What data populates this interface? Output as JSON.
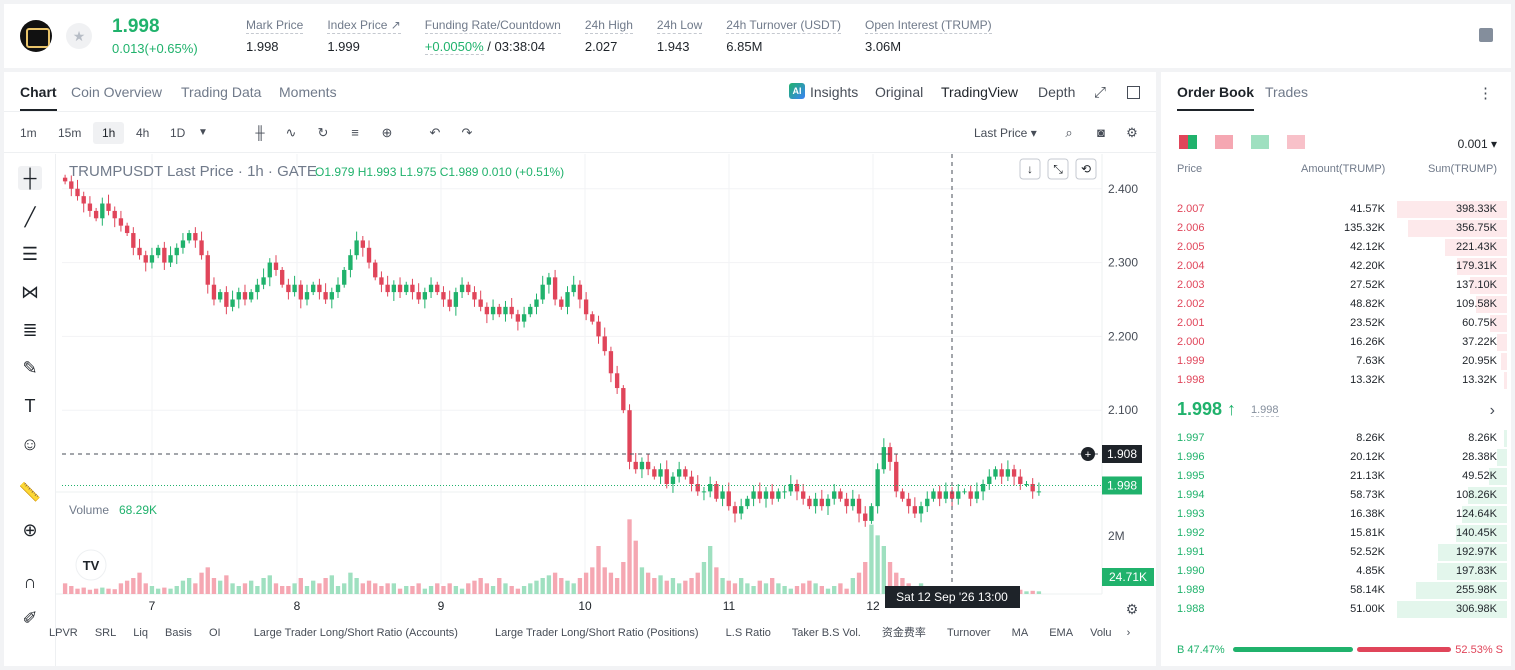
{
  "header": {
    "price": "1.998",
    "change": "0.013(+0.65%)",
    "stats": [
      {
        "label": "Mark Price",
        "value": "1.998"
      },
      {
        "label": "Index Price ↗",
        "value": "1.999"
      },
      {
        "label": "Funding Rate/Countdown",
        "value_green": "+0.0050%",
        "value": " / 03:38:04"
      },
      {
        "label": "24h High",
        "value": "2.027"
      },
      {
        "label": "24h Low",
        "value": "1.943"
      },
      {
        "label": "24h Turnover (USDT)",
        "value": "6.85M"
      },
      {
        "label": "Open Interest (TRUMP)",
        "value": "3.06M"
      }
    ]
  },
  "chart_tabs": [
    "Chart",
    "Coin Overview",
    "Trading Data",
    "Moments"
  ],
  "view_tabs": {
    "insights": "Insights",
    "original": "Original",
    "tradingview": "TradingView",
    "depth": "Depth",
    "ai_badge": "AI"
  },
  "timeframes": [
    "1m",
    "15m",
    "1h",
    "4h",
    "1D"
  ],
  "last_price_selector": "Last Price",
  "legend": {
    "title": "TRUMPUSDT Last Price · 1h · GATE",
    "ohlc": "O1.979  H1.993  L1.975  C1.989  0.010 (+0.51%)",
    "volume_label": "Volume",
    "volume_value": "68.29K"
  },
  "cursor_price": "1.908",
  "current_price_tag": "1.998",
  "volume_tag": "24.71K",
  "time_tooltip": "Sat 12 Sep '26   13:00",
  "indicators": [
    "LPVR",
    "SRL",
    "Liq",
    "Basis",
    "OI",
    "Large Trader Long/Short Ratio (Accounts)",
    "Large Trader Long/Short Ratio (Positions)",
    "L.S Ratio",
    "Taker B.S Vol.",
    "资金费率",
    "Turnover",
    "MA",
    "EMA",
    "Volu"
  ],
  "chart_data": {
    "type": "candlestick",
    "yticks": [
      2.4,
      2.3,
      2.2,
      2.1
    ],
    "ylim": [
      2.0,
      2.42
    ],
    "xticks": [
      "7",
      "8",
      "9",
      "10",
      "11",
      "12"
    ],
    "volume_tick": "2M",
    "closes": [
      2.41,
      2.4,
      2.39,
      2.38,
      2.37,
      2.36,
      2.38,
      2.37,
      2.36,
      2.35,
      2.34,
      2.32,
      2.31,
      2.3,
      2.31,
      2.32,
      2.3,
      2.31,
      2.32,
      2.33,
      2.34,
      2.33,
      2.31,
      2.27,
      2.25,
      2.26,
      2.24,
      2.25,
      2.26,
      2.25,
      2.26,
      2.27,
      2.28,
      2.3,
      2.29,
      2.27,
      2.26,
      2.27,
      2.25,
      2.26,
      2.27,
      2.26,
      2.25,
      2.26,
      2.27,
      2.29,
      2.31,
      2.33,
      2.32,
      2.3,
      2.28,
      2.27,
      2.26,
      2.27,
      2.26,
      2.27,
      2.26,
      2.25,
      2.26,
      2.27,
      2.26,
      2.25,
      2.24,
      2.26,
      2.27,
      2.26,
      2.25,
      2.24,
      2.23,
      2.24,
      2.23,
      2.24,
      2.23,
      2.22,
      2.23,
      2.24,
      2.25,
      2.27,
      2.28,
      2.25,
      2.24,
      2.26,
      2.27,
      2.25,
      2.23,
      2.22,
      2.2,
      2.18,
      2.15,
      2.13,
      2.1,
      2.03,
      2.02,
      2.03,
      2.02,
      2.01,
      2.02,
      2.0,
      2.01,
      2.02,
      2.01,
      2.0,
      1.99,
      1.99,
      2.0,
      1.98,
      1.99,
      1.97,
      1.96,
      1.97,
      1.98,
      1.99,
      1.98,
      1.99,
      1.98,
      1.99,
      1.99,
      2.0,
      1.99,
      1.98,
      1.97,
      1.98,
      1.97,
      1.98,
      1.99,
      1.98,
      1.97,
      1.98,
      1.96,
      1.95,
      1.97,
      2.02,
      2.05,
      2.03,
      1.99,
      1.98,
      1.97,
      1.96,
      1.97,
      1.98,
      1.99,
      1.98,
      1.99,
      1.98,
      1.99,
      1.99,
      1.98,
      1.99,
      2.0,
      2.01,
      2.02,
      2.01,
      2.02,
      2.01,
      2.0,
      2.0,
      1.99,
      1.99
    ],
    "volumes": [
      0.2,
      0.15,
      0.1,
      0.12,
      0.08,
      0.1,
      0.12,
      0.1,
      0.09,
      0.2,
      0.25,
      0.3,
      0.4,
      0.2,
      0.15,
      0.1,
      0.12,
      0.1,
      0.15,
      0.25,
      0.3,
      0.2,
      0.4,
      0.5,
      0.3,
      0.25,
      0.35,
      0.2,
      0.15,
      0.2,
      0.25,
      0.15,
      0.3,
      0.35,
      0.2,
      0.15,
      0.15,
      0.2,
      0.3,
      0.15,
      0.25,
      0.2,
      0.3,
      0.35,
      0.15,
      0.2,
      0.4,
      0.3,
      0.2,
      0.25,
      0.2,
      0.15,
      0.2,
      0.2,
      0.1,
      0.15,
      0.15,
      0.2,
      0.1,
      0.15,
      0.2,
      0.15,
      0.2,
      0.15,
      0.1,
      0.2,
      0.25,
      0.3,
      0.2,
      0.15,
      0.3,
      0.2,
      0.15,
      0.1,
      0.15,
      0.2,
      0.25,
      0.3,
      0.35,
      0.4,
      0.3,
      0.25,
      0.2,
      0.3,
      0.4,
      0.5,
      0.9,
      0.5,
      0.4,
      0.3,
      0.6,
      1.4,
      1.0,
      0.5,
      0.4,
      0.3,
      0.35,
      0.25,
      0.3,
      0.2,
      0.25,
      0.3,
      0.4,
      0.6,
      0.9,
      0.5,
      0.3,
      0.25,
      0.2,
      0.3,
      0.2,
      0.15,
      0.25,
      0.2,
      0.3,
      0.2,
      0.15,
      0.1,
      0.15,
      0.2,
      0.25,
      0.2,
      0.15,
      0.1,
      0.15,
      0.2,
      0.1,
      0.3,
      0.4,
      0.6,
      1.3,
      1.1,
      0.9,
      0.6,
      0.4,
      0.3,
      0.2,
      0.15,
      0.2,
      0.1,
      0.1,
      0.15,
      0.1,
      0.1,
      0.12,
      0.08,
      0.1,
      0.1,
      0.12,
      0.1,
      0.08,
      0.1,
      0.1,
      0.05,
      0.08,
      0.05,
      0.06,
      0.05
    ]
  },
  "orderbook": {
    "tabs": [
      "Order Book",
      "Trades"
    ],
    "precision": "0.001",
    "headers": {
      "price": "Price",
      "amount": "Amount(TRUMP)",
      "sum": "Sum(TRUMP)"
    },
    "asks": [
      {
        "p": "2.007",
        "a": "41.57K",
        "s": "398.33K",
        "depth": 1.0
      },
      {
        "p": "2.006",
        "a": "135.32K",
        "s": "356.75K",
        "depth": 0.9
      },
      {
        "p": "2.005",
        "a": "42.12K",
        "s": "221.43K",
        "depth": 0.56
      },
      {
        "p": "2.004",
        "a": "42.20K",
        "s": "179.31K",
        "depth": 0.45
      },
      {
        "p": "2.003",
        "a": "27.52K",
        "s": "137.10K",
        "depth": 0.34
      },
      {
        "p": "2.002",
        "a": "48.82K",
        "s": "109.58K",
        "depth": 0.28
      },
      {
        "p": "2.001",
        "a": "23.52K",
        "s": "60.75K",
        "depth": 0.15
      },
      {
        "p": "2.000",
        "a": "16.26K",
        "s": "37.22K",
        "depth": 0.09
      },
      {
        "p": "1.999",
        "a": "7.63K",
        "s": "20.95K",
        "depth": 0.05
      },
      {
        "p": "1.998",
        "a": "13.32K",
        "s": "13.32K",
        "depth": 0.03
      }
    ],
    "mid_price": "1.998 ↑",
    "mid_mark": "1.998",
    "bids": [
      {
        "p": "1.997",
        "a": "8.26K",
        "s": "8.26K",
        "depth": 0.03
      },
      {
        "p": "1.996",
        "a": "20.12K",
        "s": "28.38K",
        "depth": 0.09
      },
      {
        "p": "1.995",
        "a": "21.13K",
        "s": "49.52K",
        "depth": 0.16
      },
      {
        "p": "1.994",
        "a": "58.73K",
        "s": "108.26K",
        "depth": 0.35
      },
      {
        "p": "1.993",
        "a": "16.38K",
        "s": "124.64K",
        "depth": 0.41
      },
      {
        "p": "1.992",
        "a": "15.81K",
        "s": "140.45K",
        "depth": 0.46
      },
      {
        "p": "1.991",
        "a": "52.52K",
        "s": "192.97K",
        "depth": 0.63
      },
      {
        "p": "1.990",
        "a": "4.85K",
        "s": "197.83K",
        "depth": 0.64
      },
      {
        "p": "1.989",
        "a": "58.14K",
        "s": "255.98K",
        "depth": 0.83
      },
      {
        "p": "1.988",
        "a": "51.00K",
        "s": "306.98K",
        "depth": 1.0
      }
    ],
    "buy_ratio": "B 47.47%",
    "sell_ratio": "52.53% S"
  },
  "colors": {
    "up": "#20b26c",
    "down": "#e0455a",
    "up_vol": "#9fe0c0",
    "down_vol": "#f5a7b2"
  }
}
